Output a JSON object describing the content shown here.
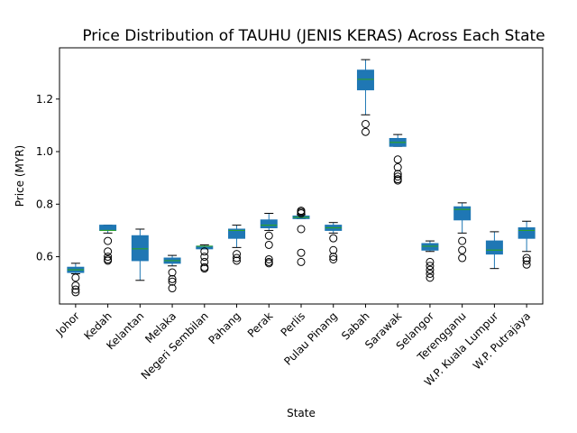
{
  "chart_data": {
    "type": "box",
    "title": "Price Distribution of TAUHU (JENIS KERAS) Across Each State",
    "xlabel": "State",
    "ylabel": "Price (MYR)",
    "ylim": [
      0.42,
      1.395
    ],
    "yticks": [
      0.6,
      0.8,
      1.0,
      1.2
    ],
    "ytick_labels": [
      "0.6",
      "0.8",
      "1.0",
      "1.2"
    ],
    "grid": false,
    "box_color": "#1f77b4",
    "median_color": "#2ca02c",
    "categories": [
      "Johor",
      "Kedah",
      "Kelantan",
      "Melaka",
      "Negeri Sembilan",
      "Pahang",
      "Perak",
      "Perlis",
      "Pulau Pinang",
      "Sabah",
      "Sarawak",
      "Selangor",
      "Terengganu",
      "W.P. Kuala Lumpur",
      "W.P. Putrajaya"
    ],
    "boxes": [
      {
        "whisker_low": 0.535,
        "q1": 0.54,
        "median": 0.55,
        "q3": 0.56,
        "whisker_high": 0.575,
        "outliers": [
          0.52,
          0.49,
          0.475,
          0.465
        ]
      },
      {
        "whisker_low": 0.69,
        "q1": 0.7,
        "median": 0.7,
        "q3": 0.72,
        "whisker_high": 0.72,
        "outliers": [
          0.66,
          0.62,
          0.6,
          0.59,
          0.585
        ]
      },
      {
        "whisker_low": 0.51,
        "q1": 0.585,
        "median": 0.63,
        "q3": 0.68,
        "whisker_high": 0.705,
        "outliers": []
      },
      {
        "whisker_low": 0.565,
        "q1": 0.575,
        "median": 0.585,
        "q3": 0.595,
        "whisker_high": 0.605,
        "outliers": [
          0.54,
          0.515,
          0.505,
          0.48
        ]
      },
      {
        "whisker_low": 0.63,
        "q1": 0.63,
        "median": 0.64,
        "q3": 0.64,
        "whisker_high": 0.645,
        "outliers": [
          0.62,
          0.6,
          0.58,
          0.56,
          0.555
        ]
      },
      {
        "whisker_low": 0.635,
        "q1": 0.67,
        "median": 0.7,
        "q3": 0.705,
        "whisker_high": 0.72,
        "outliers": [
          0.61,
          0.595,
          0.585
        ]
      },
      {
        "whisker_low": 0.7,
        "q1": 0.71,
        "median": 0.72,
        "q3": 0.74,
        "whisker_high": 0.765,
        "outliers": [
          0.68,
          0.645,
          0.59,
          0.58,
          0.575
        ]
      },
      {
        "whisker_low": 0.745,
        "q1": 0.745,
        "median": 0.75,
        "q3": 0.755,
        "whisker_high": 0.76,
        "outliers": [
          0.775,
          0.77,
          0.765,
          0.705,
          0.615,
          0.58
        ]
      },
      {
        "whisker_low": 0.69,
        "q1": 0.7,
        "median": 0.71,
        "q3": 0.72,
        "whisker_high": 0.73,
        "outliers": [
          0.67,
          0.625,
          0.6,
          0.59
        ]
      },
      {
        "whisker_low": 1.14,
        "q1": 1.235,
        "median": 1.275,
        "q3": 1.31,
        "whisker_high": 1.35,
        "outliers": [
          1.105,
          1.075
        ]
      },
      {
        "whisker_low": 1.02,
        "q1": 1.02,
        "median": 1.035,
        "q3": 1.05,
        "whisker_high": 1.065,
        "outliers": [
          0.97,
          0.94,
          0.915,
          0.905,
          0.895,
          0.89
        ]
      },
      {
        "whisker_low": 0.62,
        "q1": 0.625,
        "median": 0.64,
        "q3": 0.65,
        "whisker_high": 0.66,
        "outliers": [
          0.58,
          0.565,
          0.55,
          0.535,
          0.52
        ]
      },
      {
        "whisker_low": 0.69,
        "q1": 0.74,
        "median": 0.78,
        "q3": 0.79,
        "whisker_high": 0.805,
        "outliers": [
          0.66,
          0.625,
          0.595
        ]
      },
      {
        "whisker_low": 0.555,
        "q1": 0.61,
        "median": 0.625,
        "q3": 0.66,
        "whisker_high": 0.695,
        "outliers": []
      },
      {
        "whisker_low": 0.62,
        "q1": 0.67,
        "median": 0.7,
        "q3": 0.71,
        "whisker_high": 0.735,
        "outliers": [
          0.595,
          0.585,
          0.57
        ]
      }
    ]
  }
}
